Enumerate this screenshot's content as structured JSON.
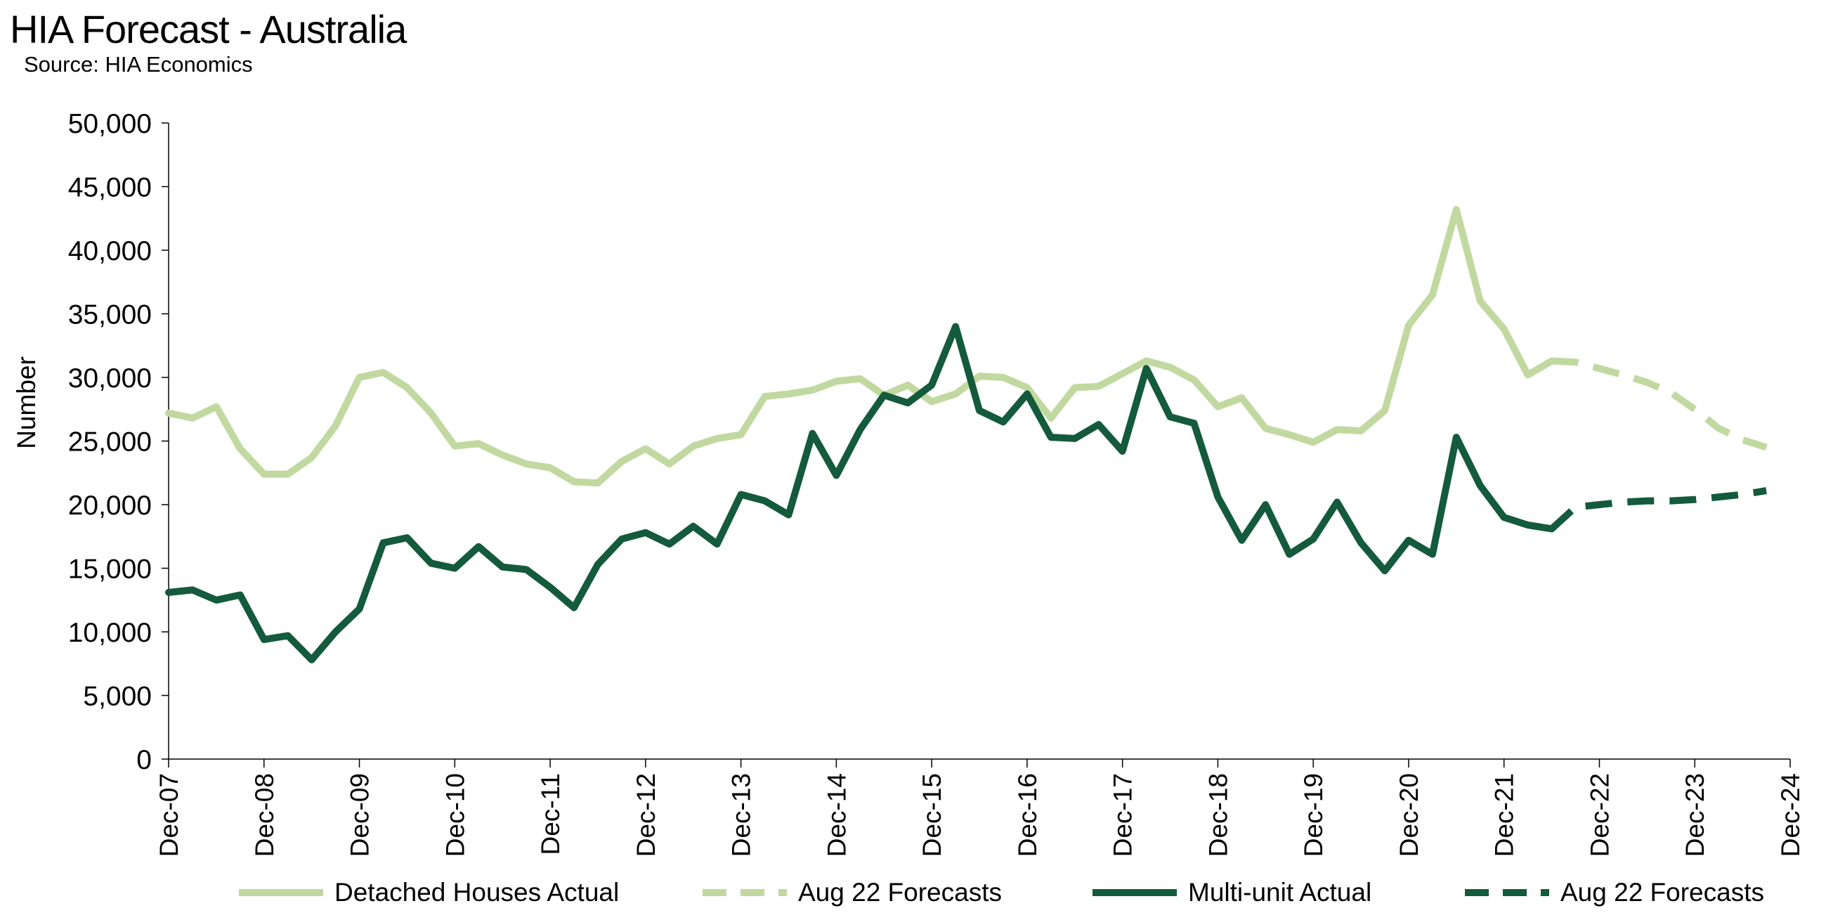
{
  "chart_data": {
    "type": "line",
    "title": "HIA Forecast - Australia",
    "subtitle": "Source: HIA Economics",
    "ylabel": "Number",
    "xlabel": "",
    "ylim": [
      0,
      50000
    ],
    "y_ticks": [
      0,
      5000,
      10000,
      15000,
      20000,
      25000,
      30000,
      35000,
      40000,
      45000,
      50000
    ],
    "y_tick_labels": [
      "0",
      "5,000",
      "10,000",
      "15,000",
      "20,000",
      "25,000",
      "30,000",
      "35,000",
      "40,000",
      "45,000",
      "50,000"
    ],
    "x_tick_labels": [
      "Dec-07",
      "Dec-08",
      "Dec-09",
      "Dec-10",
      "Dec-11",
      "Dec-12",
      "Dec-13",
      "Dec-14",
      "Dec-15",
      "Dec-16",
      "Dec-17",
      "Dec-18",
      "Dec-19",
      "Dec-20",
      "Dec-21",
      "Dec-22",
      "Dec-23",
      "Dec-24"
    ],
    "x_start": "Dec-07",
    "x_frequency": "quarterly",
    "grid": false,
    "legend_position": "bottom",
    "series": [
      {
        "name": "Detached Houses Actual",
        "color": "#c1d9a0",
        "style": "solid",
        "start_index": 0,
        "values": [
          27200,
          26800,
          27700,
          24400,
          22400,
          22400,
          23700,
          26200,
          30000,
          30400,
          29200,
          27200,
          24600,
          24800,
          23900,
          23200,
          22900,
          21800,
          21700,
          23400,
          24400,
          23200,
          24600,
          25200,
          25500,
          28500,
          28700,
          29000,
          29700,
          29900,
          28600,
          29400,
          28100,
          28700,
          30100,
          30000,
          29200,
          26800,
          29200,
          29300,
          30300,
          31300,
          30800,
          29800,
          27700,
          28400,
          26000,
          25500,
          24900,
          25900,
          25800,
          27400,
          34100,
          36500,
          43200,
          36000,
          33800,
          30200,
          31300
        ]
      },
      {
        "name": "Aug 22 Forecasts",
        "color": "#c1d9a0",
        "style": "dashed",
        "start_index": 58,
        "values": [
          31300,
          31200,
          30700,
          30200,
          29600,
          28800,
          27500,
          26000,
          25100,
          24500
        ]
      },
      {
        "name": "Multi-unit Actual",
        "color": "#145a3c",
        "style": "solid",
        "start_index": 0,
        "values": [
          13100,
          13300,
          12500,
          12900,
          9400,
          9700,
          7800,
          10000,
          11800,
          17000,
          17400,
          15400,
          15000,
          16700,
          15100,
          14900,
          13500,
          11900,
          15300,
          17300,
          17800,
          16900,
          18300,
          16900,
          20800,
          20300,
          19200,
          25600,
          22300,
          25900,
          28600,
          28000,
          29400,
          34000,
          27400,
          26500,
          28700,
          25300,
          25200,
          26300,
          24200,
          30700,
          26900,
          26400,
          20600,
          17200,
          20000,
          16100,
          17300,
          20200,
          17000,
          14800,
          17200,
          16100,
          25300,
          21500,
          19000,
          18400,
          18100
        ]
      },
      {
        "name": "Aug 22 Forecasts",
        "color": "#145a3c",
        "style": "dashed",
        "start_index": 58,
        "values": [
          18100,
          19800,
          20000,
          20200,
          20300,
          20300,
          20400,
          20600,
          20800,
          21100
        ]
      }
    ]
  }
}
